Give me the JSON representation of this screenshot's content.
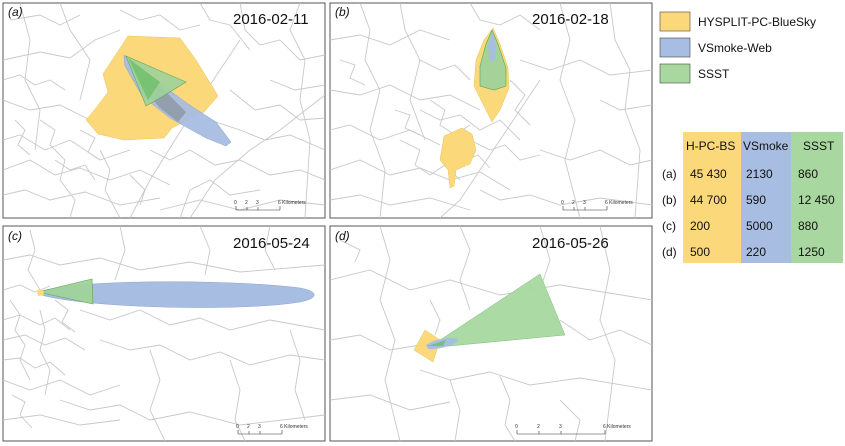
{
  "panels": [
    {
      "letter": "(a)",
      "date": "2016-02-11",
      "scale_labels": [
        "0",
        "2",
        "3",
        "6 Kilometers"
      ]
    },
    {
      "letter": "(b)",
      "date": "2016-02-18",
      "scale_labels": [
        "0",
        "2",
        "3",
        "6 Kilometers"
      ]
    },
    {
      "letter": "(c)",
      "date": "2016-05-24",
      "scale_labels": [
        "0",
        "2",
        "3",
        "6 Kilometers"
      ]
    },
    {
      "letter": "(d)",
      "date": "2016-05-26",
      "scale_labels": [
        "0",
        "2",
        "3",
        "6 Kilometers"
      ]
    }
  ],
  "legend": [
    {
      "label": "HYSPLIT-PC-BlueSky",
      "color": "#fbd97a"
    },
    {
      "label": "VSmoke-Web",
      "color": "#a8bde2"
    },
    {
      "label": "SSST",
      "color": "#a8d8a0"
    }
  ],
  "area_table": {
    "headers": [
      "H-PC-BS",
      "VSmoke",
      "SSST"
    ],
    "rows": [
      {
        "label": "(a)",
        "values": [
          "45 430",
          "2130",
          "860"
        ]
      },
      {
        "label": "(b)",
        "values": [
          "44 700",
          "590",
          "12 450"
        ]
      },
      {
        "label": "(c)",
        "values": [
          "200",
          "5000",
          "880"
        ]
      },
      {
        "label": "(d)",
        "values": [
          "500",
          "220",
          "1250"
        ]
      }
    ]
  },
  "colors": {
    "hysplit": "#fbd97a",
    "vsmoke": "#a8bde2",
    "ssst": "#a8d8a0",
    "roads": "#c8c8cc",
    "frame": "#555555"
  }
}
